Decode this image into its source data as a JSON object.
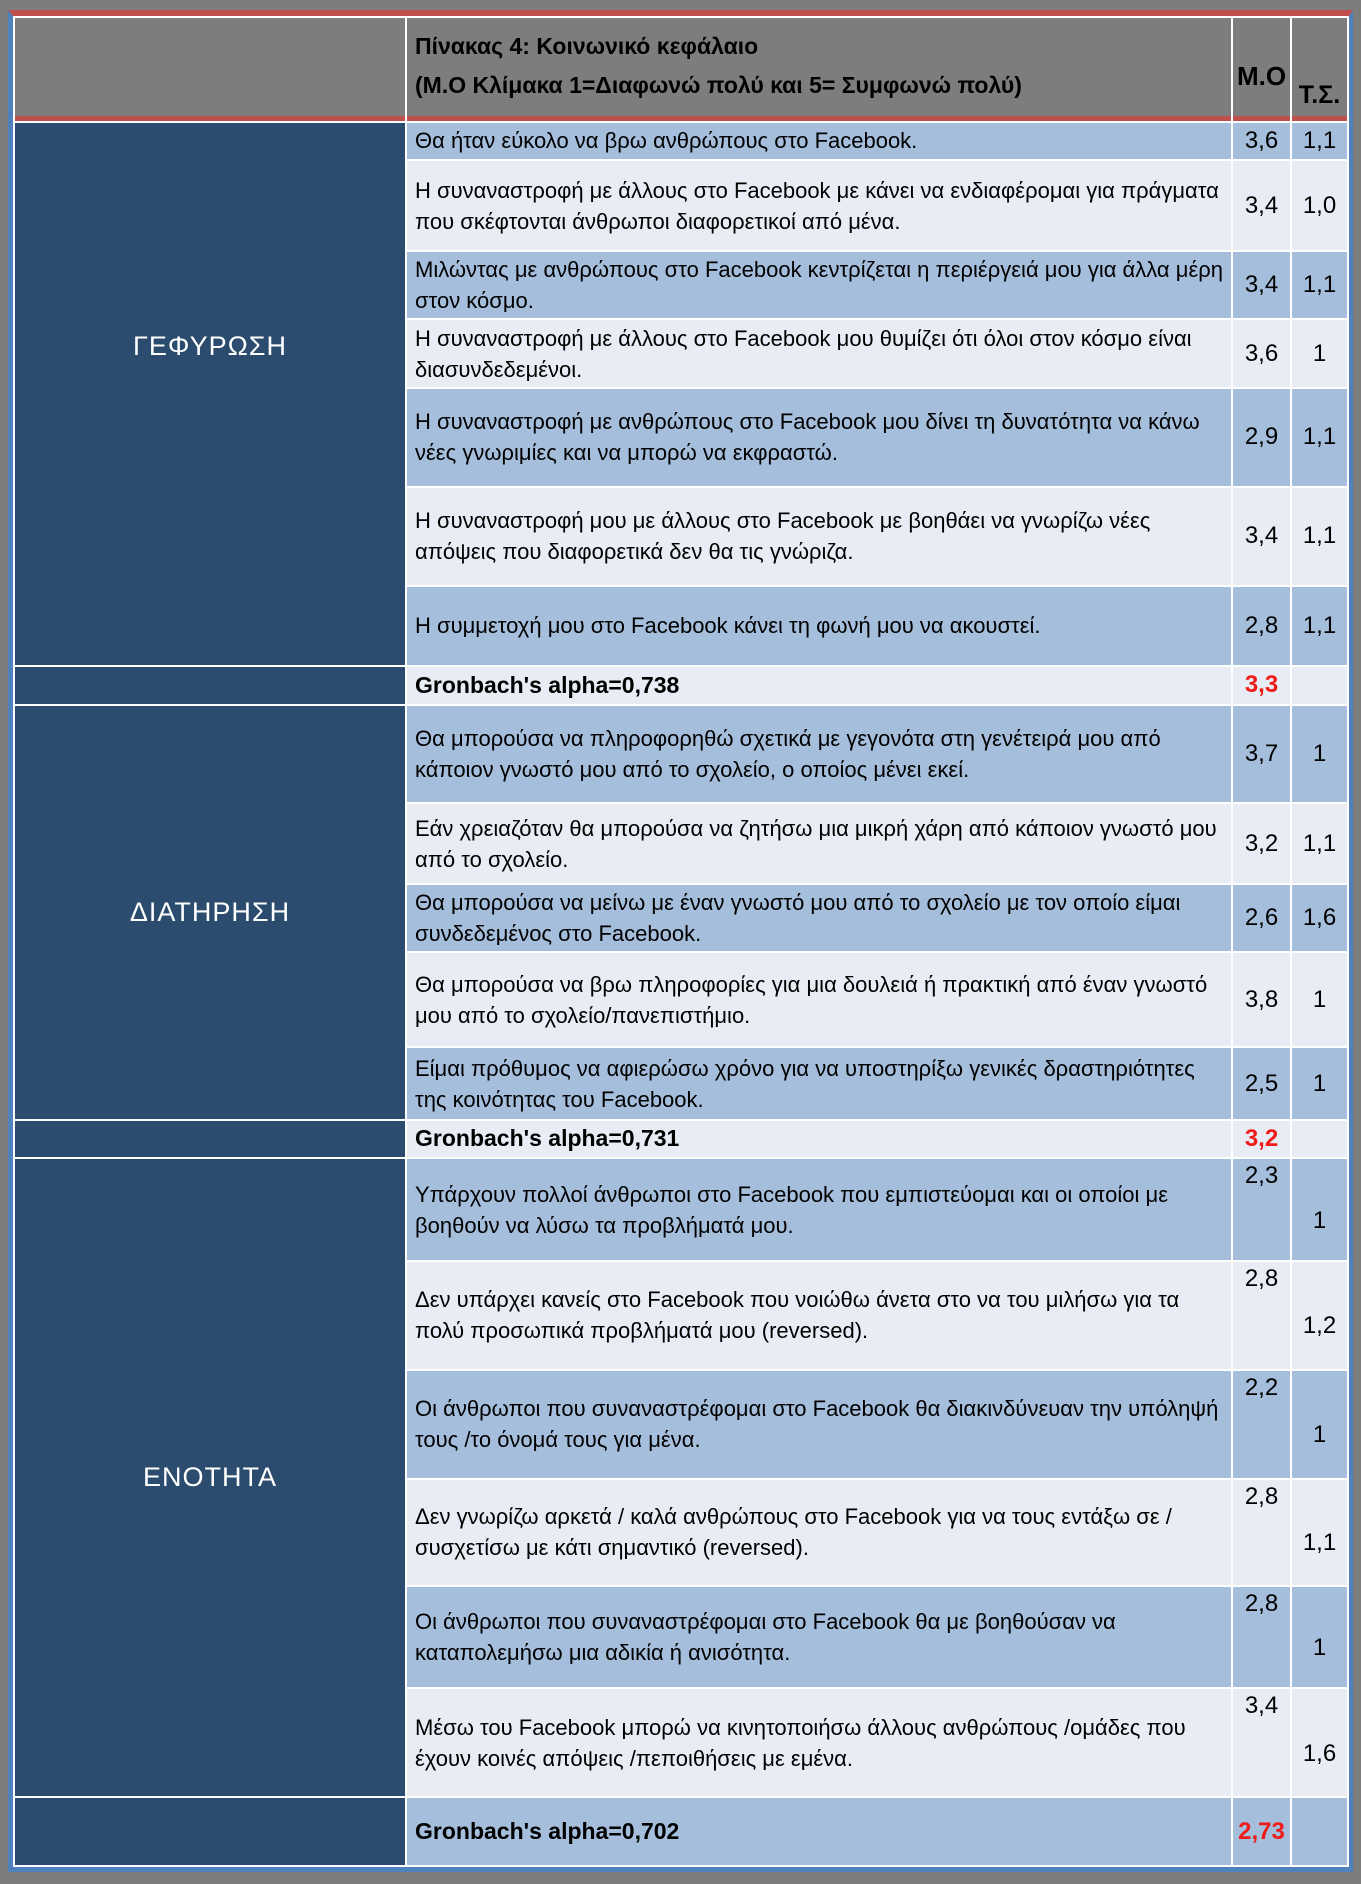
{
  "table": {
    "title_line1": "Πίνακας 4: Κοινωνικό κεφάλαιο",
    "title_line2": " (Μ.Ο Κλίμακα 1=Διαφωνώ πολύ και 5= Συμφωνώ πολύ)",
    "columns": {
      "mean": "Μ.Ο",
      "sd": "Τ.Σ."
    },
    "sections": [
      {
        "label": "ΓΕΦΥΡΩΣΗ",
        "rows": [
          {
            "text": "Θα ήταν εύκολο να βρω ανθρώπους στο Facebook.",
            "mean": "3,6",
            "sd": "1,1"
          },
          {
            "text": "Η συναναστροφή με άλλους στο Facebook με κάνει να ενδιαφέρομαι για πράγματα που σκέφτονται άνθρωποι διαφορετικοί από μένα.",
            "mean": "3,4",
            "sd": "1,0"
          },
          {
            "text": "Μιλώντας με ανθρώπους στο Facebook κεντρίζεται η περιέργειά μου για άλλα μέρη στον κόσμο.",
            "mean": "3,4",
            "sd": "1,1"
          },
          {
            "text": "Η συναναστροφή με άλλους στο Facebook μου θυμίζει ότι όλοι στον κόσμο είναι διασυνδεδεμένοι.",
            "mean": "3,6",
            "sd": "1"
          },
          {
            "text": "Η συναναστροφή με ανθρώπους στο Facebook μου δίνει τη δυνατότητα να κάνω νέες γνωριμίες και να μπορώ να εκφραστώ.",
            "mean": "2,9",
            "sd": "1,1"
          },
          {
            "text": "Η συναναστροφή μου με άλλους στο Facebook με βοηθάει να γνωρίζω νέες απόψεις που διαφορετικά δεν θα τις γνώριζα.",
            "mean": "3,4",
            "sd": "1,1"
          },
          {
            "text": "Η συμμετοχή μου στο Facebook κάνει τη φωνή μου να ακουστεί.",
            "mean": "2,8",
            "sd": "1,1"
          }
        ],
        "alpha": {
          "label": "Gronbach's alpha=0,738",
          "mean": "3,3"
        }
      },
      {
        "label": "ΔΙΑΤΗΡΗΣΗ",
        "rows": [
          {
            "text": "Θα μπορούσα να πληροφορηθώ σχετικά με γεγονότα στη γενέτειρά μου από κάποιον γνωστό μου από το σχολείο, ο οποίος μένει εκεί.",
            "mean": "3,7",
            "sd": "1"
          },
          {
            "text": "Εάν χρειαζόταν θα μπορούσα να ζητήσω μια μικρή χάρη από κάποιον γνωστό μου από το σχολείο.",
            "mean": "3,2",
            "sd": "1,1"
          },
          {
            "text": "Θα μπορούσα να μείνω με έναν γνωστό μου από το σχολείο με τον οποίο είμαι συνδεδεμένος στο Facebook.",
            "mean": "2,6",
            "sd": "1,6"
          },
          {
            "text": "Θα μπορούσα να βρω πληροφορίες για μια δουλειά ή πρακτική από έναν γνωστό μου από το σχολείο/πανεπιστήμιο.",
            "mean": "3,8",
            "sd": "1"
          },
          {
            "text": "Είμαι πρόθυμος να αφιερώσω χρόνο για να υποστηρίξω γενικές δραστηριότητες της κοινότητας του Facebook.",
            "mean": "2,5",
            "sd": "1"
          }
        ],
        "alpha": {
          "label": "Gronbach's alpha=0,731",
          "mean": "3,2"
        }
      },
      {
        "label": "ΕΝΟΤΗΤΑ",
        "rows": [
          {
            "text": "Υπάρχουν πολλοί άνθρωποι στο Facebook που εμπιστεύομαι και οι οποίοι με βοηθούν να λύσω τα προβλήματά μου.",
            "mean": "2,3",
            "sd": "1"
          },
          {
            "text": "Δεν υπάρχει κανείς στο Facebook που νοιώθω άνετα στο να του μιλήσω για τα πολύ προσωπικά προβλήματά μου (reversed).",
            "mean": "2,8",
            "sd": "1,2"
          },
          {
            "text": "Οι άνθρωποι που συναναστρέφομαι στο Facebook θα διακινδύνευαν την υπόληψή τους /το όνομά τους για μένα.",
            "mean": "2,2",
            "sd": "1"
          },
          {
            "text": "Δεν γνωρίζω αρκετά / καλά ανθρώπους στο Facebook για να τους εντάξω σε / συσχετίσω με κάτι σημαντικό (reversed).",
            "mean": "2,8",
            "sd": "1,1"
          },
          {
            "text": "Οι άνθρωποι που συναναστρέφομαι στο Facebook θα με βοηθούσαν να καταπολεμήσω μια αδικία ή ανισότητα.",
            "mean": "2,8",
            "sd": "1"
          },
          {
            "text": "Μέσω του Facebook μπορώ να κινητοποιήσω άλλους ανθρώπους /ομάδες που έχουν κοινές απόψεις /πεποιθήσεις με εμένα.",
            "mean": "3,4",
            "sd": "1,6"
          }
        ],
        "alpha": {
          "label": "Gronbach's alpha=0,702",
          "mean": "2,73"
        }
      }
    ],
    "colors": {
      "category_navy": "#2b4c6e",
      "row_blue": "#a5bedc",
      "row_light": "#e8edf5",
      "header_gray": "#7d7d7d",
      "border_red": "#c0504d",
      "border_blue": "#4f81bd",
      "alpha_value_red": "#ee1b17"
    }
  }
}
